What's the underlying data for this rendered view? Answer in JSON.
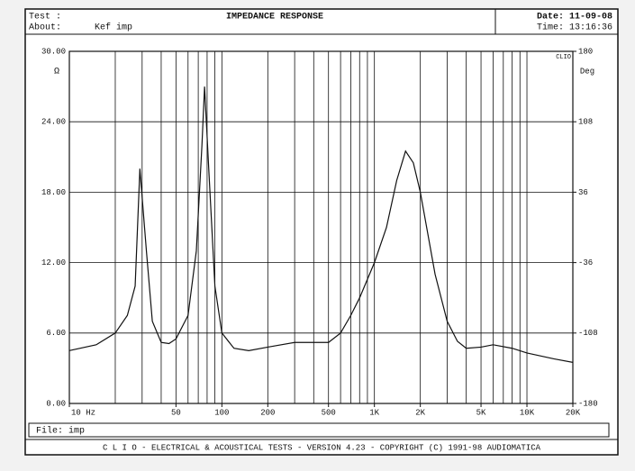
{
  "header": {
    "test_label": "Test :",
    "title": "IMPEDANCE RESPONSE",
    "date": "Date: 11-09-08",
    "about_label": "About:",
    "about": "Kef imp",
    "time": "Time: 13:16:36"
  },
  "file": "File: imp",
  "footer": "C L I O  -  ELECTRICAL & ACOUSTICAL TESTS  -  VERSION 4.23  -  COPYRIGHT (C) 1991-98 AUDIOMATICA",
  "chart_data": {
    "type": "line",
    "xscale": "log",
    "grid": true,
    "ylabel": "Ω",
    "y2label": "Deg",
    "brand": "CLIO",
    "xlim": [
      10,
      20000
    ],
    "xticks": [
      {
        "value": 10,
        "label": "10 Hz"
      },
      50,
      100,
      200,
      500,
      {
        "value": 1000,
        "label": "1K"
      },
      {
        "value": 2000,
        "label": "2K"
      },
      {
        "value": 5000,
        "label": "5K"
      },
      {
        "value": 10000,
        "label": "10K"
      },
      {
        "value": 20000,
        "label": "20K"
      }
    ],
    "xgrid": [
      20,
      30,
      40,
      50,
      60,
      70,
      80,
      90,
      100,
      200,
      300,
      400,
      500,
      600,
      700,
      800,
      900,
      1000,
      2000,
      3000,
      4000,
      5000,
      6000,
      7000,
      8000,
      9000,
      10000
    ],
    "ylim": [
      0,
      30
    ],
    "yticks": [
      {
        "value": 0,
        "label": "0.00"
      },
      {
        "value": 6,
        "label": "6.00"
      },
      {
        "value": 12,
        "label": "12.00"
      },
      {
        "value": 18,
        "label": "18.00"
      },
      {
        "value": 24,
        "label": "24.00"
      },
      {
        "value": 30,
        "label": "30.00"
      }
    ],
    "y2lim": [
      -180,
      180
    ],
    "y2ticks": [
      -180,
      -108,
      -36,
      36,
      108,
      180
    ],
    "x": [
      10,
      15,
      20,
      24,
      27,
      29,
      32,
      35,
      40,
      45,
      50,
      60,
      68,
      74,
      77,
      82,
      90,
      100,
      120,
      150,
      200,
      300,
      500,
      600,
      700,
      800,
      1000,
      1200,
      1400,
      1600,
      1800,
      2000,
      2500,
      3000,
      3500,
      4000,
      5000,
      6000,
      8000,
      10000,
      15000,
      20000
    ],
    "series": [
      {
        "name": "Impedance",
        "color": "#111111",
        "values": [
          4.5,
          5,
          6,
          7.5,
          10,
          20,
          13,
          7,
          5.2,
          5.1,
          5.5,
          7.5,
          13,
          22,
          27,
          20,
          10,
          6,
          4.7,
          4.5,
          4.8,
          5.2,
          5.2,
          6,
          7.5,
          9,
          12,
          15,
          19,
          21.5,
          20.5,
          18,
          11,
          7,
          5.3,
          4.7,
          4.8,
          5,
          4.7,
          4.3,
          3.8,
          3.5
        ]
      }
    ]
  }
}
